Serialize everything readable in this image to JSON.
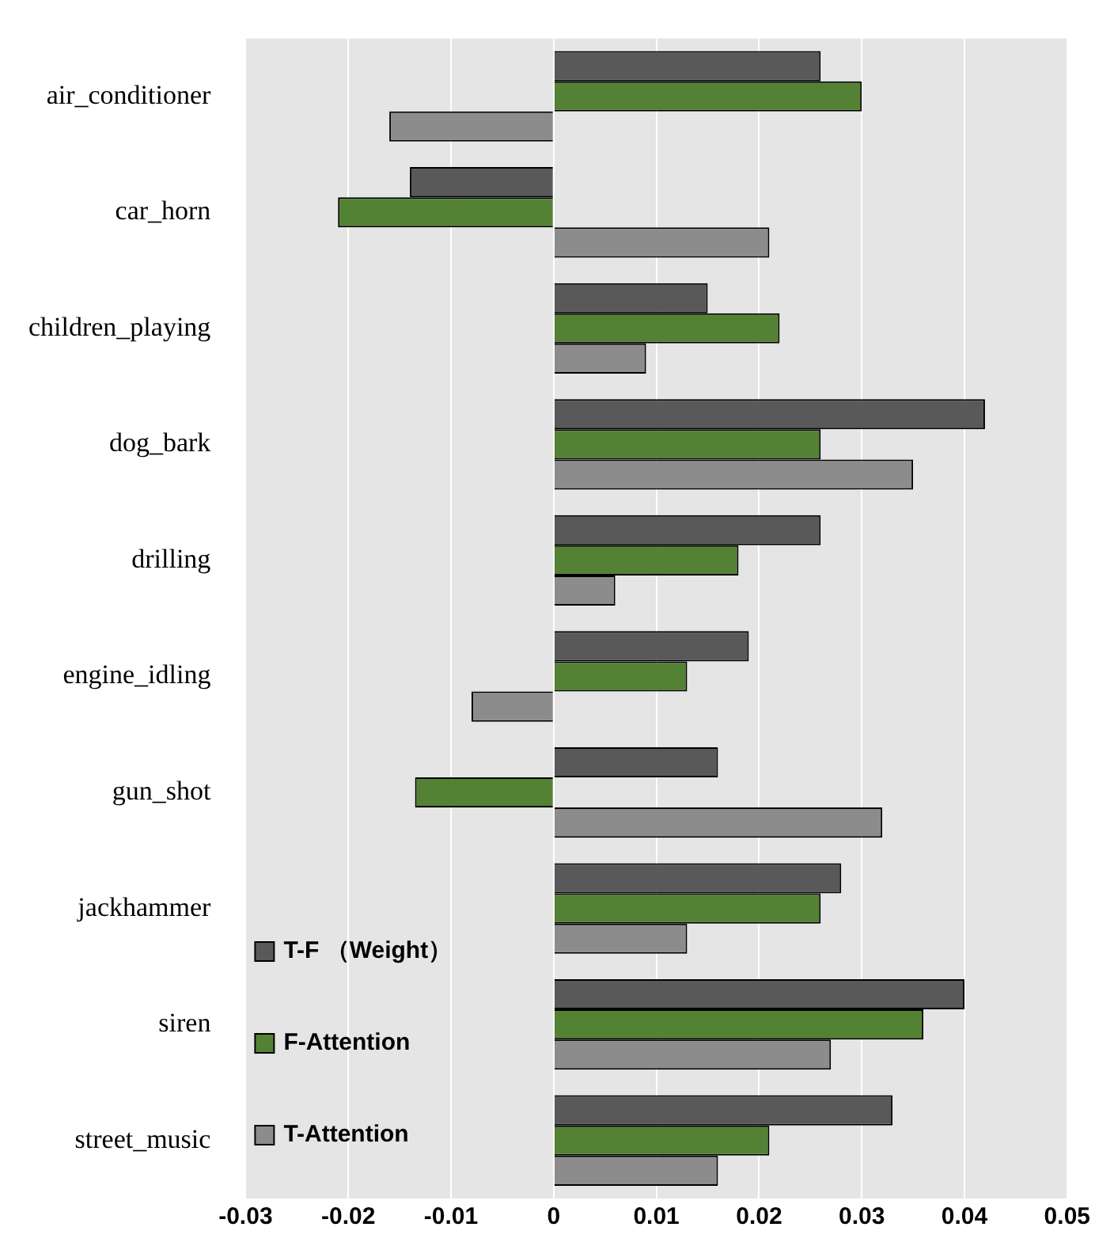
{
  "chart_data": {
    "type": "bar",
    "orientation": "horizontal",
    "categories": [
      "air_conditioner",
      "car_horn",
      "children_playing",
      "dog_bark",
      "drilling",
      "engine_idling",
      "gun_shot",
      "jackhammer",
      "siren",
      "street_music"
    ],
    "series": [
      {
        "name": "T-F （Weight）",
        "color": "#595959",
        "values": [
          0.026,
          -0.014,
          0.015,
          0.042,
          0.026,
          0.019,
          0.016,
          0.028,
          0.04,
          0.033
        ]
      },
      {
        "name": "F-Attention",
        "color": "#548235",
        "values": [
          0.03,
          -0.021,
          0.022,
          0.026,
          0.018,
          0.013,
          -0.0135,
          0.026,
          0.036,
          0.021
        ]
      },
      {
        "name": "T-Attention",
        "color": "#8c8c8c",
        "values": [
          -0.016,
          0.021,
          0.009,
          0.035,
          0.006,
          -0.008,
          0.032,
          0.013,
          0.027,
          0.016
        ]
      }
    ],
    "xlim": [
      -0.03,
      0.05
    ],
    "xticks": [
      -0.03,
      -0.02,
      -0.01,
      0,
      0.01,
      0.02,
      0.03,
      0.04,
      0.05
    ],
    "grid": "x",
    "legend": "bottom left"
  }
}
